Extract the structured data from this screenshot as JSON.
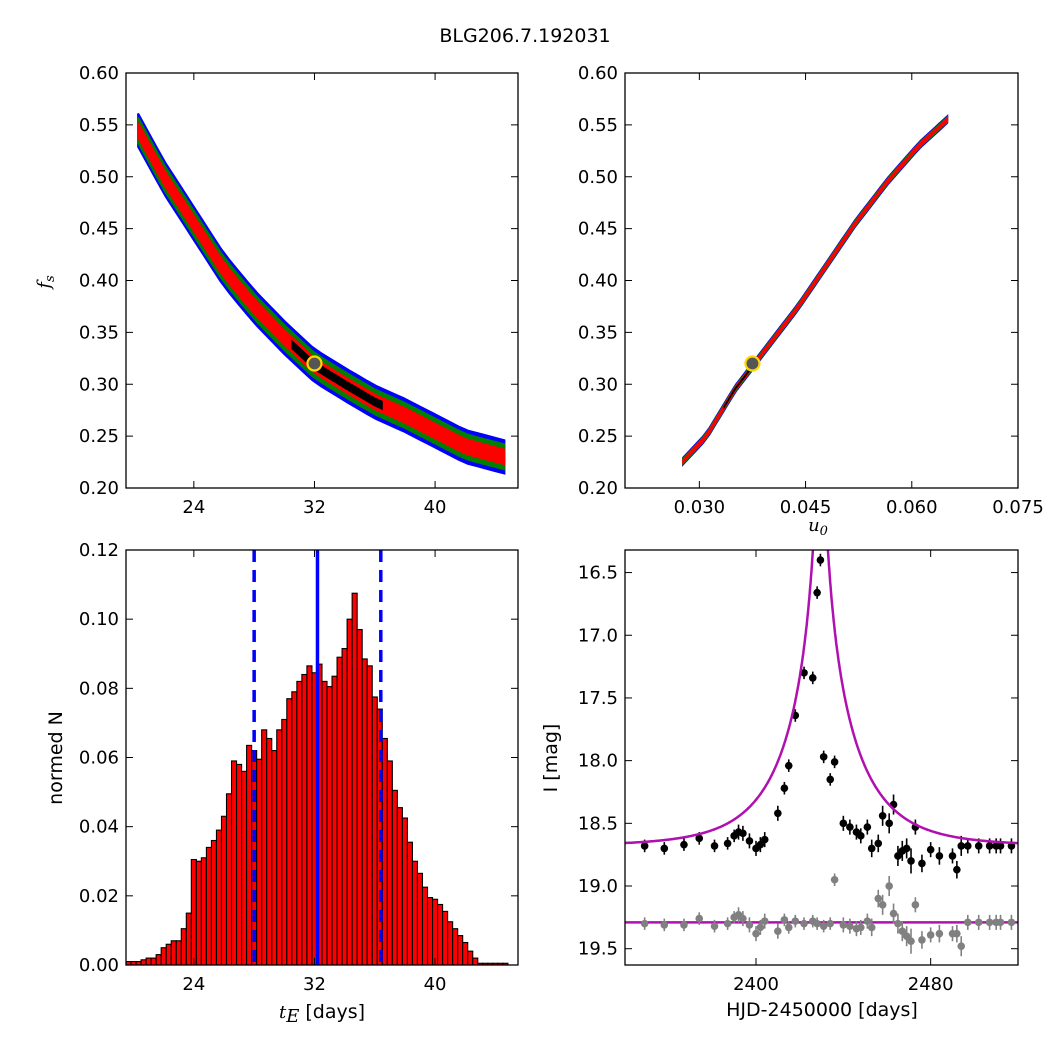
{
  "figure_title": "BLG206.7.192031",
  "chart_data": [
    {
      "panel": "top-left",
      "type": "heatmap",
      "title": "",
      "xlabel": "",
      "ylabel_main": "f",
      "ylabel_sub": "s",
      "xlim": [
        19.5,
        45.5
      ],
      "ylim": [
        0.2,
        0.6
      ],
      "xticks": [
        24,
        32,
        40
      ],
      "yticks": [
        0.2,
        0.25,
        0.3,
        0.35,
        0.4,
        0.45,
        0.5,
        0.55,
        0.6
      ],
      "ytick_labels": [
        "0.20",
        "0.25",
        "0.30",
        "0.35",
        "0.40",
        "0.45",
        "0.50",
        "0.55",
        "0.60"
      ],
      "levels": [
        {
          "color": "#0000ff",
          "halfwidth": 0.016
        },
        {
          "color": "#008000",
          "halfwidth": 0.012
        },
        {
          "color": "#ff0000",
          "halfwidth": 0.007
        }
      ],
      "ridge_x": [
        20.3,
        22.0,
        24.0,
        26.0,
        28.0,
        30.0,
        32.0,
        34.0,
        36.0,
        38.0,
        40.0,
        42.0,
        44.6
      ],
      "ridge_y": [
        0.545,
        0.5,
        0.455,
        0.41,
        0.375,
        0.345,
        0.318,
        0.3,
        0.283,
        0.27,
        0.255,
        0.24,
        0.23
      ],
      "best_segment_x": [
        30.5,
        36.5
      ],
      "best_fit": {
        "x": 32.0,
        "y": 0.32
      }
    },
    {
      "panel": "top-right",
      "type": "heatmap",
      "title": "",
      "xlabel_main": "u",
      "xlabel_sub": "0",
      "ylabel": "",
      "xlim": [
        0.0195,
        0.075
      ],
      "ylim": [
        0.2,
        0.6
      ],
      "xticks": [
        0.03,
        0.045,
        0.06,
        0.075
      ],
      "xtick_labels": [
        "0.030",
        "0.045",
        "0.060",
        "0.075"
      ],
      "yticks": [
        0.2,
        0.25,
        0.3,
        0.35,
        0.4,
        0.45,
        0.5,
        0.55,
        0.6
      ],
      "ytick_labels": [
        "0.20",
        "0.25",
        "0.30",
        "0.35",
        "0.40",
        "0.45",
        "0.50",
        "0.55",
        "0.60"
      ],
      "levels": [
        {
          "color": "#0000ff",
          "halfwidth": 0.0032
        },
        {
          "color": "#008000",
          "halfwidth": 0.0022
        },
        {
          "color": "#ff0000",
          "halfwidth": 0.0012
        }
      ],
      "ridge_x": [
        0.0277,
        0.031,
        0.035,
        0.0395,
        0.044,
        0.048,
        0.052,
        0.0565,
        0.061,
        0.065
      ],
      "ridge_y": [
        0.226,
        0.25,
        0.295,
        0.335,
        0.375,
        0.415,
        0.455,
        0.495,
        0.53,
        0.555
      ],
      "best_segment_x": [
        0.0335,
        0.0375
      ],
      "best_fit": {
        "x": 0.0375,
        "y": 0.32
      }
    },
    {
      "panel": "bottom-left",
      "type": "bar",
      "title": "",
      "xlabel_main": "t",
      "xlabel_sub": "E",
      "xlabel_unit": "[days]",
      "ylabel": "normed N",
      "xlim": [
        19.5,
        45.5
      ],
      "ylim": [
        0,
        0.12
      ],
      "xticks": [
        24,
        32,
        40
      ],
      "yticks": [
        0.0,
        0.02,
        0.04,
        0.06,
        0.08,
        0.1,
        0.12
      ],
      "ytick_labels": [
        "0.00",
        "0.02",
        "0.04",
        "0.06",
        "0.08",
        "0.10",
        "0.12"
      ],
      "bar_color": "#ff0000",
      "bin_start": 19.5,
      "bin_width": 0.3333,
      "values": [
        0.001,
        0.001,
        0.001,
        0.0015,
        0.002,
        0.002,
        0.003,
        0.005,
        0.006,
        0.007,
        0.007,
        0.0105,
        0.015,
        0.0305,
        0.03,
        0.031,
        0.034,
        0.036,
        0.039,
        0.043,
        0.0495,
        0.059,
        0.058,
        0.056,
        0.0635,
        0.062,
        0.0595,
        0.068,
        0.0655,
        0.062,
        0.068,
        0.071,
        0.077,
        0.079,
        0.082,
        0.084,
        0.0865,
        0.0845,
        0.087,
        0.082,
        0.0805,
        0.0835,
        0.089,
        0.0915,
        0.1,
        0.1075,
        0.097,
        0.0885,
        0.0865,
        0.0775,
        0.074,
        0.0655,
        0.059,
        0.0505,
        0.0455,
        0.0425,
        0.0355,
        0.03,
        0.0265,
        0.0225,
        0.0195,
        0.019,
        0.0175,
        0.0155,
        0.0125,
        0.0105,
        0.0085,
        0.0065,
        0.004,
        0.002,
        0.0005,
        0.0005,
        0.0005,
        0.0005,
        0.0005,
        0.0005
      ],
      "median_line": 32.2,
      "dashed_lines": [
        28.0,
        36.4
      ],
      "line_color": "#0000ff"
    },
    {
      "panel": "bottom-right",
      "type": "scatter",
      "title": "",
      "xlabel": "HJD-2450000 [days]",
      "ylabel": "I [mag]",
      "xlim": [
        2340,
        2520
      ],
      "ylim": [
        19.63,
        16.32
      ],
      "y_inverted": true,
      "xticks": [
        2400,
        2480
      ],
      "yticks": [
        16.5,
        17.0,
        17.5,
        18.0,
        18.5,
        19.0,
        19.5
      ],
      "ytick_labels": [
        "16.5",
        "17.0",
        "17.5",
        "18.0",
        "18.5",
        "19.0",
        "19.5"
      ],
      "model_color": "#b010b0",
      "model": {
        "t0": 2429.5,
        "u0": 0.0375,
        "tE": 32.0,
        "mag_base": 18.68
      },
      "reference_line_mag": 19.29,
      "series": [
        {
          "color": "#000000",
          "x": [
            2349,
            2358,
            2367,
            2374,
            2381,
            2387,
            2390,
            2392,
            2394,
            2397,
            2400,
            2402,
            2404,
            2410,
            2413,
            2415,
            2418,
            2422,
            2426,
            2428,
            2429.5,
            2431,
            2434,
            2436,
            2440,
            2443,
            2446,
            2448,
            2451,
            2453,
            2456,
            2458,
            2461,
            2463,
            2465,
            2467,
            2469,
            2471,
            2473,
            2476,
            2480,
            2484,
            2490,
            2492,
            2494,
            2497,
            2502,
            2507,
            2510,
            2512,
            2517
          ],
          "y": [
            18.68,
            18.7,
            18.67,
            18.62,
            18.68,
            18.66,
            18.6,
            18.57,
            18.58,
            18.64,
            18.7,
            18.67,
            18.63,
            18.42,
            18.22,
            18.04,
            17.64,
            17.3,
            17.34,
            16.66,
            16.4,
            17.97,
            18.15,
            18.01,
            18.5,
            18.53,
            18.57,
            18.6,
            18.53,
            18.7,
            18.66,
            18.44,
            18.5,
            18.35,
            18.76,
            18.72,
            18.7,
            18.8,
            18.53,
            18.82,
            18.71,
            18.76,
            18.76,
            18.87,
            18.68,
            18.68,
            18.68,
            18.68,
            18.68,
            18.68,
            18.68
          ],
          "err": [
            0.05,
            0.05,
            0.05,
            0.05,
            0.05,
            0.05,
            0.05,
            0.06,
            0.06,
            0.06,
            0.06,
            0.06,
            0.06,
            0.06,
            0.05,
            0.05,
            0.05,
            0.05,
            0.05,
            0.05,
            0.05,
            0.05,
            0.05,
            0.05,
            0.06,
            0.06,
            0.06,
            0.06,
            0.06,
            0.07,
            0.07,
            0.08,
            0.08,
            0.08,
            0.08,
            0.08,
            0.08,
            0.1,
            0.06,
            0.07,
            0.06,
            0.07,
            0.06,
            0.07,
            0.08,
            0.06,
            0.06,
            0.06,
            0.06,
            0.06,
            0.06
          ]
        },
        {
          "color": "#808080",
          "x": [
            2349,
            2358,
            2367,
            2374,
            2381,
            2387,
            2390,
            2392,
            2394,
            2397,
            2400,
            2402,
            2404,
            2410,
            2413,
            2415,
            2418,
            2422,
            2426,
            2428,
            2431,
            2434,
            2436,
            2440,
            2443,
            2446,
            2448,
            2451,
            2453,
            2456,
            2458,
            2461,
            2463,
            2465,
            2467,
            2469,
            2471,
            2473,
            2476,
            2480,
            2484,
            2490,
            2492,
            2494,
            2497,
            2502,
            2507,
            2510,
            2512,
            2517
          ],
          "y": [
            19.3,
            19.31,
            19.31,
            19.26,
            19.32,
            19.3,
            19.25,
            19.23,
            19.26,
            19.31,
            19.38,
            19.33,
            19.28,
            19.36,
            19.27,
            19.33,
            19.28,
            19.3,
            19.28,
            19.3,
            19.32,
            19.3,
            18.95,
            19.31,
            19.32,
            19.34,
            19.33,
            19.28,
            19.33,
            19.1,
            19.15,
            19.0,
            19.22,
            19.3,
            19.36,
            19.4,
            19.44,
            19.15,
            19.43,
            19.39,
            19.38,
            19.38,
            19.38,
            19.48,
            19.29,
            19.29,
            19.29,
            19.29,
            19.29,
            19.29
          ],
          "err": [
            0.05,
            0.05,
            0.05,
            0.05,
            0.05,
            0.05,
            0.05,
            0.06,
            0.06,
            0.06,
            0.06,
            0.06,
            0.06,
            0.06,
            0.05,
            0.05,
            0.05,
            0.05,
            0.05,
            0.05,
            0.05,
            0.05,
            0.05,
            0.06,
            0.06,
            0.06,
            0.06,
            0.06,
            0.07,
            0.07,
            0.08,
            0.08,
            0.08,
            0.08,
            0.08,
            0.08,
            0.1,
            0.06,
            0.07,
            0.06,
            0.07,
            0.06,
            0.07,
            0.08,
            0.06,
            0.06,
            0.06,
            0.06,
            0.06,
            0.06
          ]
        }
      ]
    }
  ]
}
